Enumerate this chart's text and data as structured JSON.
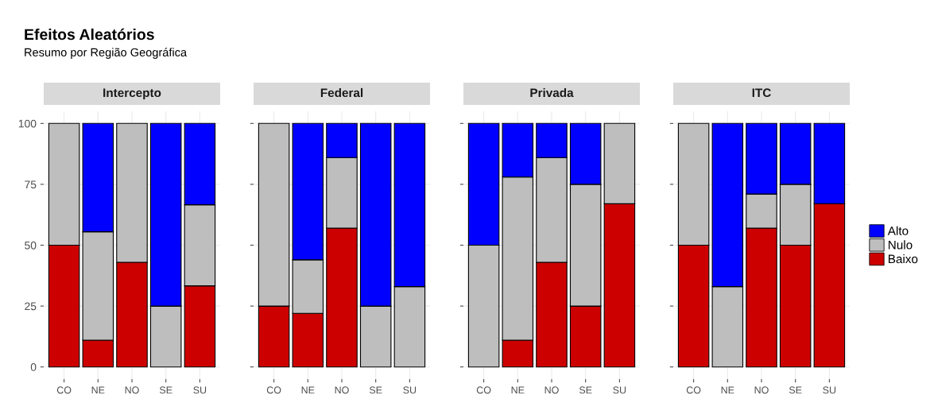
{
  "chart_data": [
    {
      "type": "bar",
      "stacked": true,
      "title": "Intercepto",
      "annotations": [
        "Efeitos Aleatórios",
        "Resumo por Região Geográfica"
      ],
      "categories": [
        "CO",
        "NE",
        "NO",
        "SE",
        "SU"
      ],
      "ylim": [
        -5,
        105
      ],
      "yticks": [
        0,
        25,
        50,
        75,
        100
      ],
      "grid": true,
      "series": [
        {
          "color": "#cd0000",
          "values": [
            50,
            11,
            43,
            0,
            33.3
          ]
        },
        {
          "color": "#bebebe",
          "values": [
            50,
            44.5,
            57,
            25,
            33.3
          ]
        },
        {
          "color": "#0000ff",
          "values": [
            0,
            44.5,
            0,
            75,
            33.4
          ]
        }
      ]
    },
    {
      "type": "bar",
      "stacked": true,
      "title": "Federal",
      "categories": [
        "CO",
        "NE",
        "NO",
        "SE",
        "SU"
      ],
      "ylim": [
        -5,
        105
      ],
      "yticks": [
        0,
        25,
        50,
        75,
        100
      ],
      "tick_labels": "x",
      "grid": true,
      "series": [
        {
          "color": "#cd0000",
          "values": [
            25,
            22,
            57,
            0,
            0
          ]
        },
        {
          "color": "#bebebe",
          "values": [
            75,
            22,
            29,
            25,
            33
          ]
        },
        {
          "color": "#0000ff",
          "values": [
            0,
            56,
            14,
            75,
            67
          ]
        }
      ]
    },
    {
      "type": "bar",
      "stacked": true,
      "title": "Privada",
      "categories": [
        "CO",
        "NE",
        "NO",
        "SE",
        "SU"
      ],
      "ylim": [
        -5,
        105
      ],
      "yticks": [
        0,
        25,
        50,
        75,
        100
      ],
      "tick_labels": "x",
      "grid": true,
      "series": [
        {
          "color": "#cd0000",
          "values": [
            0,
            11,
            43,
            25,
            67
          ]
        },
        {
          "color": "#bebebe",
          "values": [
            50,
            67,
            43,
            50,
            33
          ]
        },
        {
          "color": "#0000ff",
          "values": [
            50,
            22,
            14,
            25,
            0
          ]
        }
      ]
    },
    {
      "type": "bar",
      "stacked": true,
      "title": "ITC",
      "categories": [
        "CO",
        "NE",
        "NO",
        "SE",
        "SU"
      ],
      "ylim": [
        -5,
        105
      ],
      "yticks": [
        0,
        25,
        50,
        75,
        100
      ],
      "tick_labels": "x",
      "grid": true,
      "legend": "right",
      "series": [
        {
          "name": "Baixo",
          "color": "#cd0000",
          "values": [
            50,
            0,
            57,
            50,
            67
          ]
        },
        {
          "name": "Nulo",
          "color": "#bebebe",
          "values": [
            50,
            33,
            14,
            25,
            0
          ]
        },
        {
          "name": "Alto",
          "color": "#0000ff",
          "values": [
            0,
            67,
            29,
            25,
            33
          ]
        }
      ]
    }
  ]
}
